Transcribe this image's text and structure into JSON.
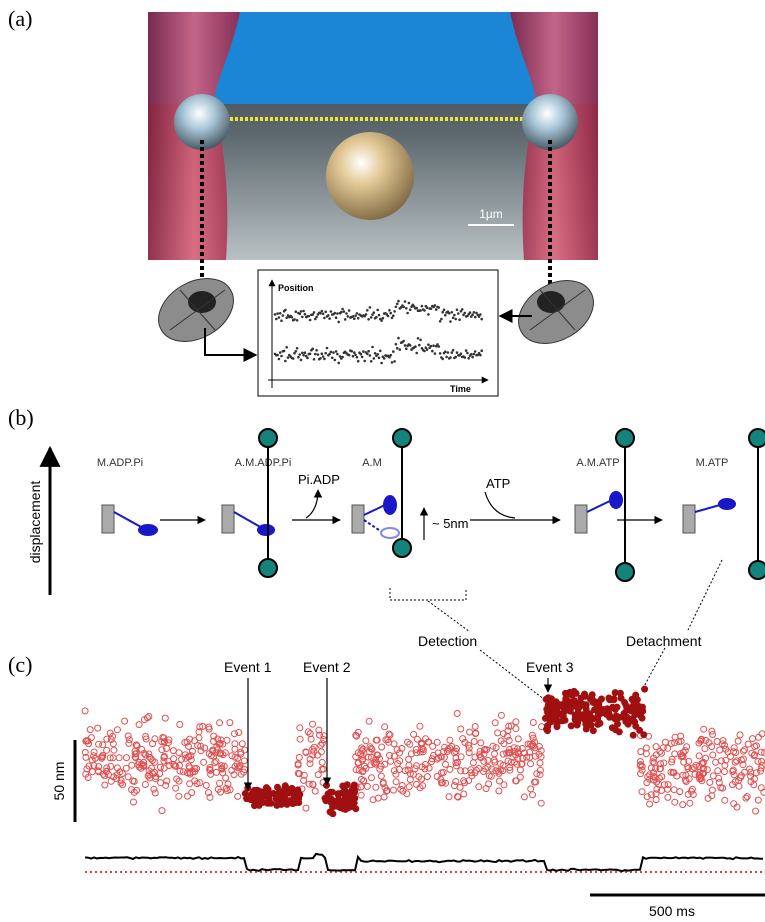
{
  "panels": {
    "a": {
      "label": "(a)",
      "scale_bar": "1µm",
      "inset": {
        "y_label": "Position",
        "x_label": "Time"
      }
    },
    "b": {
      "label": "(b)",
      "y_axis": "displacement",
      "states": [
        "M.ADP.Pi",
        "A.M.ADP.Pi",
        "A.M",
        "A.M.ATP",
        "M.ATP"
      ],
      "transitions": {
        "release": "Pi.ADP",
        "binding": "ATP",
        "step": "~ 5nm"
      },
      "callouts": {
        "detection": "Detection",
        "detachment": "Detachment"
      }
    },
    "c": {
      "label": "(c)",
      "events": [
        "Event 1",
        "Event 2",
        "Event 3"
      ],
      "scale_y": "50 nm",
      "scale_x": "500 ms"
    }
  }
}
